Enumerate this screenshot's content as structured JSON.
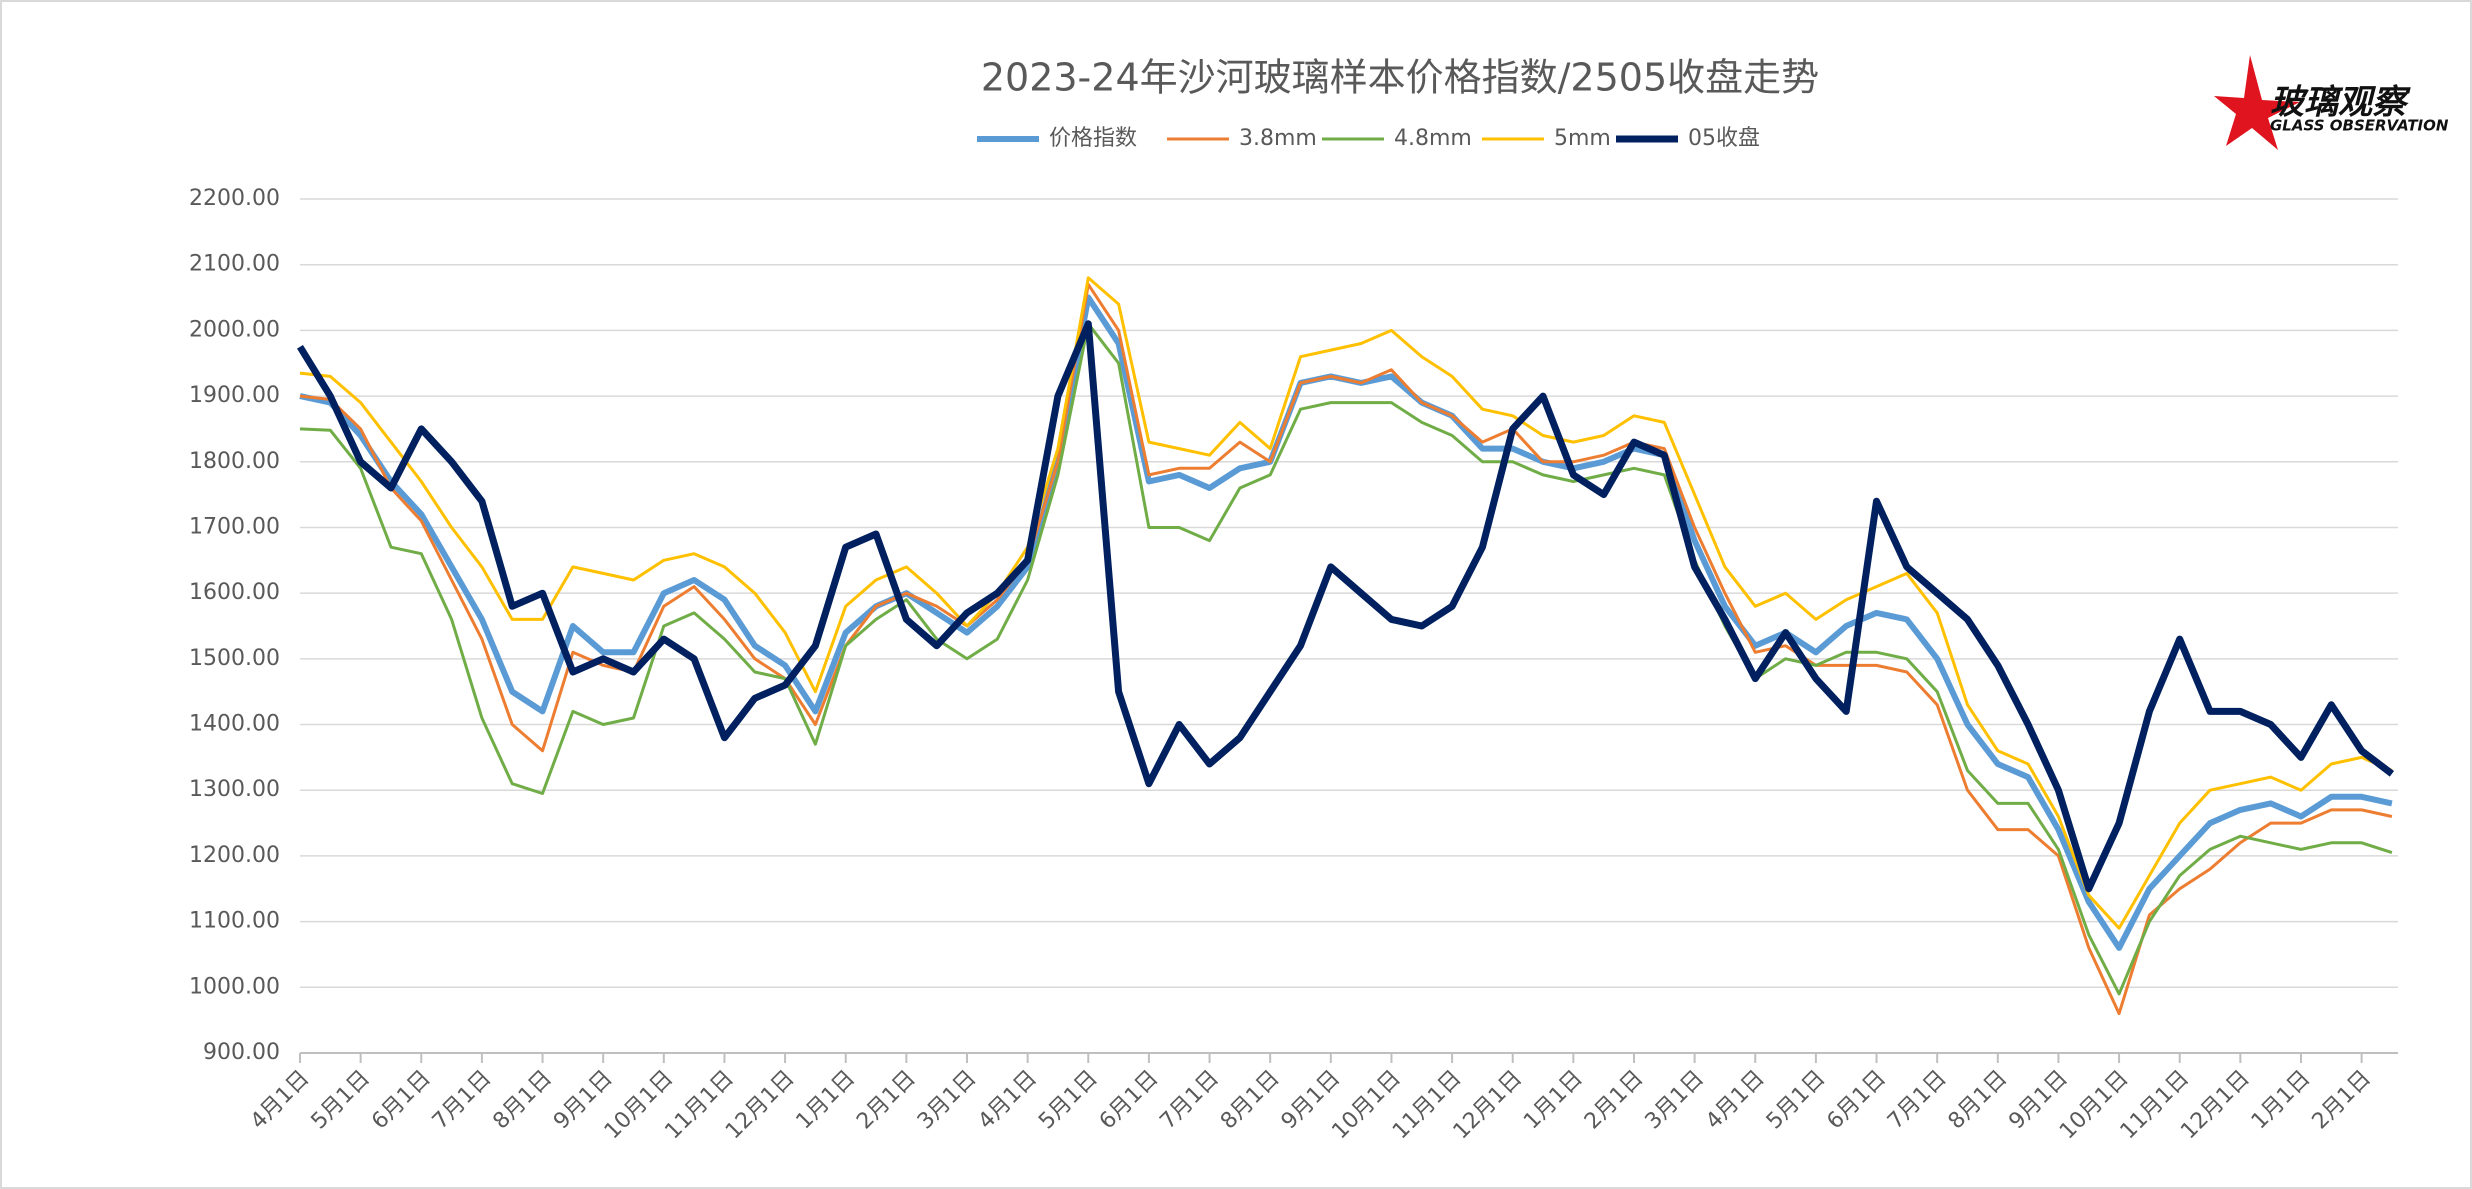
{
  "chart_data": {
    "type": "line",
    "title": "2023-24年沙河玻璃样本价格指数/2505收盘走势",
    "logo": {
      "name": "玻璃观察",
      "subtitle": "GLASS OBSERVATION"
    },
    "x": [
      0,
      0.5,
      1,
      1.5,
      2,
      2.5,
      3,
      3.5,
      4,
      4.5,
      5,
      5.5,
      6,
      6.5,
      7,
      7.5,
      8,
      8.5,
      9,
      9.5,
      10,
      10.5,
      11,
      11.5,
      12,
      12.5,
      13,
      13.5,
      14,
      14.5,
      15,
      15.5,
      16,
      16.5,
      17,
      17.5,
      18,
      18.5,
      19,
      19.5,
      20,
      20.5,
      21,
      21.5,
      22,
      22.5,
      23,
      23.5,
      24,
      24.5,
      25,
      25.5,
      26,
      26.5,
      27,
      27.5,
      28,
      28.5,
      29,
      29.5,
      30,
      30.5,
      31,
      31.5,
      32,
      32.5,
      33,
      33.5,
      34,
      34.5
    ],
    "series": [
      {
        "name": "价格指数",
        "color": "#5b9bd5",
        "values": [
          1900,
          1890,
          1840,
          1770,
          1720,
          1640,
          1560,
          1450,
          1420,
          1550,
          1510,
          1510,
          1600,
          1620,
          1590,
          1520,
          1490,
          1420,
          1540,
          1580,
          1600,
          1570,
          1540,
          1580,
          1640,
          1800,
          2050,
          1980,
          1770,
          1780,
          1760,
          1790,
          1800,
          1920,
          1930,
          1920,
          1930,
          1890,
          1870,
          1820,
          1820,
          1800,
          1790,
          1800,
          1820,
          1810,
          1680,
          1580,
          1520,
          1540,
          1510,
          1550,
          1570,
          1560,
          1500,
          1400,
          1340,
          1320,
          1240,
          1130,
          1060,
          1150,
          1200,
          1250,
          1270,
          1280,
          1260,
          1290,
          1290,
          1280
        ]
      },
      {
        "name": "3.8mm",
        "color": "#ed7d31",
        "values": [
          1900,
          1895,
          1850,
          1760,
          1710,
          1620,
          1530,
          1400,
          1360,
          1510,
          1490,
          1480,
          1580,
          1610,
          1560,
          1500,
          1470,
          1400,
          1520,
          1580,
          1600,
          1580,
          1550,
          1590,
          1650,
          1800,
          2070,
          2000,
          1780,
          1790,
          1790,
          1830,
          1800,
          1920,
          1930,
          1920,
          1940,
          1890,
          1870,
          1830,
          1850,
          1800,
          1800,
          1810,
          1830,
          1820,
          1700,
          1600,
          1510,
          1520,
          1490,
          1490,
          1490,
          1480,
          1430,
          1300,
          1240,
          1240,
          1200,
          1060,
          960,
          1110,
          1150,
          1180,
          1220,
          1250,
          1250,
          1270,
          1270,
          1260
        ]
      },
      {
        "name": "4.8mm",
        "color": "#70ad47",
        "values": [
          1850,
          1848,
          1790,
          1670,
          1660,
          1560,
          1410,
          1310,
          1295,
          1420,
          1400,
          1410,
          1550,
          1570,
          1530,
          1480,
          1470,
          1370,
          1520,
          1560,
          1590,
          1530,
          1500,
          1530,
          1620,
          1780,
          2010,
          1950,
          1700,
          1700,
          1680,
          1760,
          1780,
          1880,
          1890,
          1890,
          1890,
          1860,
          1840,
          1800,
          1800,
          1780,
          1770,
          1780,
          1790,
          1780,
          1650,
          1550,
          1470,
          1500,
          1490,
          1510,
          1510,
          1500,
          1450,
          1330,
          1280,
          1280,
          1210,
          1080,
          990,
          1100,
          1170,
          1210,
          1230,
          1220,
          1210,
          1220,
          1220,
          1205
        ]
      },
      {
        "name": "5mm",
        "color": "#ffc000",
        "values": [
          1935,
          1930,
          1890,
          1830,
          1770,
          1700,
          1640,
          1560,
          1560,
          1640,
          1630,
          1620,
          1650,
          1660,
          1640,
          1600,
          1540,
          1450,
          1580,
          1620,
          1640,
          1600,
          1550,
          1600,
          1670,
          1820,
          2080,
          2040,
          1830,
          1820,
          1810,
          1860,
          1820,
          1960,
          1970,
          1980,
          2000,
          1960,
          1930,
          1880,
          1870,
          1840,
          1830,
          1840,
          1870,
          1860,
          1750,
          1640,
          1580,
          1600,
          1560,
          1590,
          1610,
          1630,
          1570,
          1430,
          1360,
          1340,
          1260,
          1140,
          1090,
          1170,
          1250,
          1300,
          1310,
          1320,
          1300,
          1340,
          1350,
          1330
        ]
      },
      {
        "name": "05收盘",
        "color": "#002060",
        "values": [
          1975,
          1900,
          1800,
          1760,
          1850,
          1800,
          1740,
          1580,
          1600,
          1480,
          1500,
          1480,
          1530,
          1500,
          1380,
          1440,
          1460,
          1520,
          1670,
          1690,
          1560,
          1520,
          1570,
          1600,
          1650,
          1900,
          2010,
          1450,
          1310,
          1400,
          1340,
          1380,
          1450,
          1520,
          1640,
          1600,
          1560,
          1550,
          1580,
          1670,
          1850,
          1900,
          1780,
          1750,
          1830,
          1810,
          1640,
          1560,
          1470,
          1540,
          1470,
          1420,
          1740,
          1640,
          1600,
          1560,
          1490,
          1400,
          1300,
          1150,
          1250,
          1420,
          1530,
          1420,
          1420,
          1400,
          1350,
          1430,
          1360,
          1325
        ]
      }
    ],
    "xlim": [
      0,
      34.6
    ],
    "xticks": [
      {
        "value": 0,
        "label": "4月1日"
      },
      {
        "value": 1,
        "label": "5月1日"
      },
      {
        "value": 2,
        "label": "6月1日"
      },
      {
        "value": 3,
        "label": "7月1日"
      },
      {
        "value": 4,
        "label": "8月1日"
      },
      {
        "value": 5,
        "label": "9月1日"
      },
      {
        "value": 6,
        "label": "10月1日"
      },
      {
        "value": 7,
        "label": "11月1日"
      },
      {
        "value": 8,
        "label": "12月1日"
      },
      {
        "value": 9,
        "label": "1月1日"
      },
      {
        "value": 10,
        "label": "2月1日"
      },
      {
        "value": 11,
        "label": "3月1日"
      },
      {
        "value": 12,
        "label": "4月1日"
      },
      {
        "value": 13,
        "label": "5月1日"
      },
      {
        "value": 14,
        "label": "6月1日"
      },
      {
        "value": 15,
        "label": "7月1日"
      },
      {
        "value": 16,
        "label": "8月1日"
      },
      {
        "value": 17,
        "label": "9月1日"
      },
      {
        "value": 18,
        "label": "10月1日"
      },
      {
        "value": 19,
        "label": "11月1日"
      },
      {
        "value": 20,
        "label": "12月1日"
      },
      {
        "value": 21,
        "label": "1月1日"
      },
      {
        "value": 22,
        "label": "2月1日"
      },
      {
        "value": 23,
        "label": "3月1日"
      },
      {
        "value": 24,
        "label": "4月1日"
      },
      {
        "value": 25,
        "label": "5月1日"
      },
      {
        "value": 26,
        "label": "6月1日"
      },
      {
        "value": 27,
        "label": "7月1日"
      },
      {
        "value": 28,
        "label": "8月1日"
      },
      {
        "value": 29,
        "label": "9月1日"
      },
      {
        "value": 30,
        "label": "10月1日"
      },
      {
        "value": 31,
        "label": "11月1日"
      },
      {
        "value": 32,
        "label": "12月1日"
      },
      {
        "value": 33,
        "label": "1月1日"
      },
      {
        "value": 34,
        "label": "2月1日"
      }
    ],
    "ylim": [
      900,
      2200
    ],
    "yticks": [
      {
        "value": 900,
        "label": "900.00"
      },
      {
        "value": 1000,
        "label": "1000.00"
      },
      {
        "value": 1100,
        "label": "1100.00"
      },
      {
        "value": 1200,
        "label": "1200.00"
      },
      {
        "value": 1300,
        "label": "1300.00"
      },
      {
        "value": 1400,
        "label": "1400.00"
      },
      {
        "value": 1500,
        "label": "1500.00"
      },
      {
        "value": 1600,
        "label": "1600.00"
      },
      {
        "value": 1700,
        "label": "1700.00"
      },
      {
        "value": 1800,
        "label": "1800.00"
      },
      {
        "value": 1900,
        "label": "1900.00"
      },
      {
        "value": 2000,
        "label": "2000.00"
      },
      {
        "value": 2100,
        "label": "2100.00"
      },
      {
        "value": 2200,
        "label": "2200.00"
      }
    ],
    "grid": true,
    "legend": "top"
  }
}
